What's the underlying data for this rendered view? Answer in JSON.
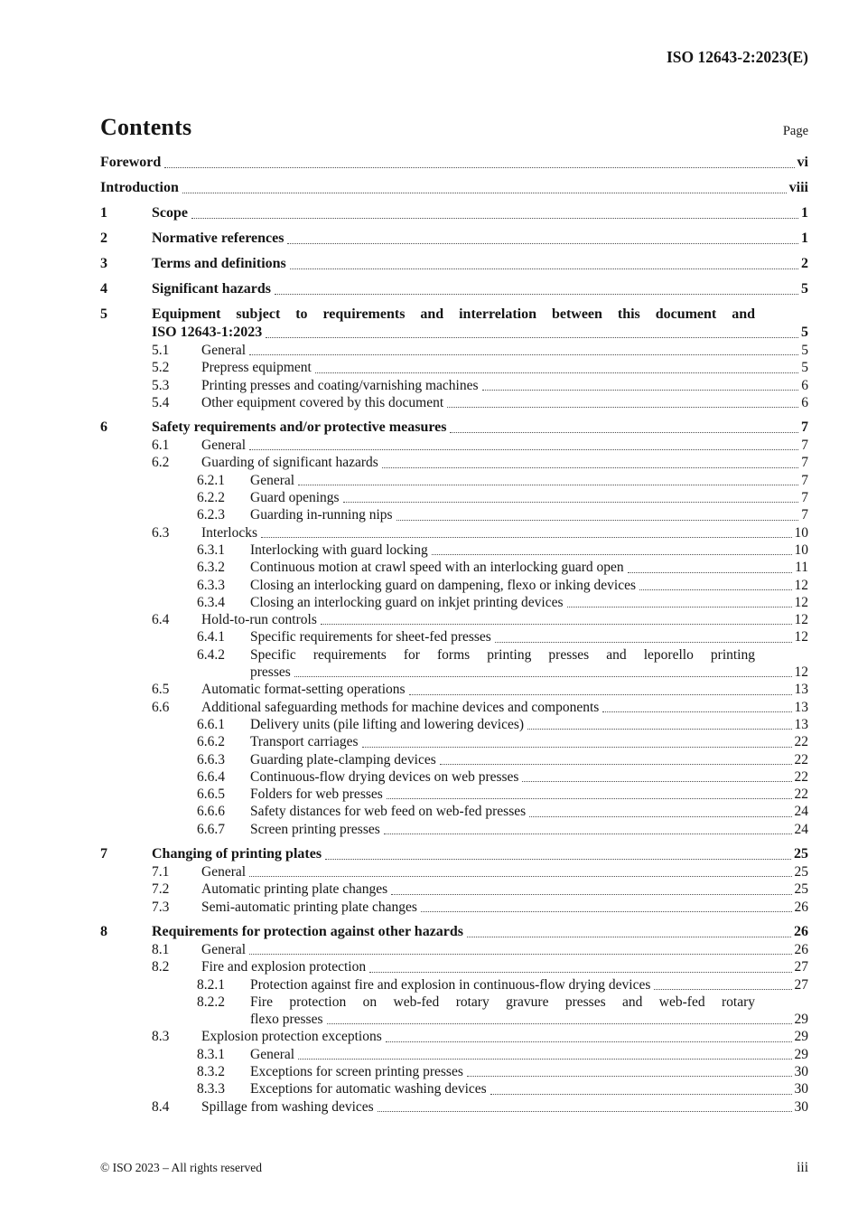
{
  "header": {
    "doc_ref": "ISO 12643-2:2023(E)"
  },
  "toc": {
    "title": "Contents",
    "page_label": "Page",
    "entries": [
      {
        "level": 0,
        "bold": true,
        "title": "Foreword",
        "page": "vi"
      },
      {
        "level": 0,
        "bold": true,
        "title": "Introduction",
        "page": "viii"
      },
      {
        "level": 1,
        "bold": true,
        "num": "1",
        "title": "Scope",
        "page": "1"
      },
      {
        "level": 1,
        "bold": true,
        "num": "2",
        "title": "Normative references",
        "page": "1"
      },
      {
        "level": 1,
        "bold": true,
        "num": "3",
        "title": "Terms and definitions",
        "page": "2"
      },
      {
        "level": 1,
        "bold": true,
        "num": "4",
        "title": "Significant hazards",
        "page": "5"
      },
      {
        "level": 1,
        "bold": true,
        "num": "5",
        "line1": "Equipment subject to requirements and interrelation between this document and",
        "title": "ISO 12643-1:2023",
        "page": "5"
      },
      {
        "level": 2,
        "bold": false,
        "num": "5.1",
        "title": "General",
        "page": "5"
      },
      {
        "level": 2,
        "bold": false,
        "num": "5.2",
        "title": "Prepress equipment",
        "page": "5"
      },
      {
        "level": 2,
        "bold": false,
        "num": "5.3",
        "title": "Printing presses and coating/varnishing machines",
        "page": "6"
      },
      {
        "level": 2,
        "bold": false,
        "num": "5.4",
        "title": "Other equipment covered by this document",
        "page": "6"
      },
      {
        "level": 1,
        "bold": true,
        "num": "6",
        "title": "Safety requirements and/or protective measures",
        "page": "7"
      },
      {
        "level": 2,
        "bold": false,
        "num": "6.1",
        "title": "General",
        "page": "7"
      },
      {
        "level": 2,
        "bold": false,
        "num": "6.2",
        "title": "Guarding of significant hazards",
        "page": "7"
      },
      {
        "level": 3,
        "bold": false,
        "num": "6.2.1",
        "title": "General",
        "page": "7"
      },
      {
        "level": 3,
        "bold": false,
        "num": "6.2.2",
        "title": "Guard openings",
        "page": "7"
      },
      {
        "level": 3,
        "bold": false,
        "num": "6.2.3",
        "title": "Guarding in-running nips",
        "page": "7"
      },
      {
        "level": 2,
        "bold": false,
        "num": "6.3",
        "title": "Interlocks",
        "page": "10"
      },
      {
        "level": 3,
        "bold": false,
        "num": "6.3.1",
        "title": "Interlocking with guard locking",
        "page": "10"
      },
      {
        "level": 3,
        "bold": false,
        "num": "6.3.2",
        "title": "Continuous motion at crawl speed with an interlocking guard open",
        "page": "11"
      },
      {
        "level": 3,
        "bold": false,
        "num": "6.3.3",
        "title": "Closing an interlocking guard on dampening, flexo or inking devices",
        "page": "12"
      },
      {
        "level": 3,
        "bold": false,
        "num": "6.3.4",
        "title": "Closing an interlocking guard on inkjet printing devices",
        "page": "12"
      },
      {
        "level": 2,
        "bold": false,
        "num": "6.4",
        "title": "Hold-to-run controls",
        "page": "12"
      },
      {
        "level": 3,
        "bold": false,
        "num": "6.4.1",
        "title": "Specific requirements for sheet-fed presses",
        "page": "12"
      },
      {
        "level": 3,
        "bold": false,
        "num": "6.4.2",
        "line1": "Specific requirements for forms printing presses and leporello printing",
        "title": "presses",
        "page": "12"
      },
      {
        "level": 2,
        "bold": false,
        "num": "6.5",
        "title": "Automatic format-setting operations",
        "page": "13"
      },
      {
        "level": 2,
        "bold": false,
        "num": "6.6",
        "title": "Additional safeguarding methods for machine devices and components",
        "page": "13"
      },
      {
        "level": 3,
        "bold": false,
        "num": "6.6.1",
        "title": "Delivery units (pile lifting and lowering devices)",
        "page": "13"
      },
      {
        "level": 3,
        "bold": false,
        "num": "6.6.2",
        "title": "Transport carriages",
        "page": "22"
      },
      {
        "level": 3,
        "bold": false,
        "num": "6.6.3",
        "title": "Guarding plate-clamping devices",
        "page": "22"
      },
      {
        "level": 3,
        "bold": false,
        "num": "6.6.4",
        "title": "Continuous-flow drying devices on web presses",
        "page": "22"
      },
      {
        "level": 3,
        "bold": false,
        "num": "6.6.5",
        "title": "Folders for web presses",
        "page": "22"
      },
      {
        "level": 3,
        "bold": false,
        "num": "6.6.6",
        "title": "Safety distances for web feed on web-fed presses",
        "page": "24"
      },
      {
        "level": 3,
        "bold": false,
        "num": "6.6.7",
        "title": "Screen printing presses",
        "page": "24"
      },
      {
        "level": 1,
        "bold": true,
        "num": "7",
        "title": "Changing of printing plates",
        "page": "25"
      },
      {
        "level": 2,
        "bold": false,
        "num": "7.1",
        "title": "General",
        "page": "25"
      },
      {
        "level": 2,
        "bold": false,
        "num": "7.2",
        "title": "Automatic printing plate changes",
        "page": "25"
      },
      {
        "level": 2,
        "bold": false,
        "num": "7.3",
        "title": "Semi-automatic printing plate changes",
        "page": "26"
      },
      {
        "level": 1,
        "bold": true,
        "num": "8",
        "title": "Requirements for protection against other hazards",
        "page": "26"
      },
      {
        "level": 2,
        "bold": false,
        "num": "8.1",
        "title": "General",
        "page": "26"
      },
      {
        "level": 2,
        "bold": false,
        "num": "8.2",
        "title": "Fire and explosion protection",
        "page": "27"
      },
      {
        "level": 3,
        "bold": false,
        "num": "8.2.1",
        "title": "Protection against fire and explosion in continuous-flow drying devices",
        "page": "27"
      },
      {
        "level": 3,
        "bold": false,
        "num": "8.2.2",
        "line1": "Fire protection on web-fed rotary gravure presses and web-fed rotary",
        "title": "flexo presses",
        "page": "29"
      },
      {
        "level": 2,
        "bold": false,
        "num": "8.3",
        "title": "Explosion protection exceptions",
        "page": "29"
      },
      {
        "level": 3,
        "bold": false,
        "num": "8.3.1",
        "title": "General",
        "page": "29"
      },
      {
        "level": 3,
        "bold": false,
        "num": "8.3.2",
        "title": "Exceptions for screen printing presses",
        "page": "30"
      },
      {
        "level": 3,
        "bold": false,
        "num": "8.3.3",
        "title": "Exceptions for automatic washing devices",
        "page": "30"
      },
      {
        "level": 2,
        "bold": false,
        "num": "8.4",
        "title": "Spillage from washing devices",
        "page": "30"
      }
    ]
  },
  "footer": {
    "copyright": "© ISO 2023 – All rights reserved",
    "page_number": "iii"
  }
}
